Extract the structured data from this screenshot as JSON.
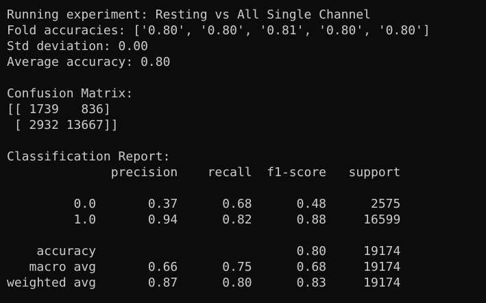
{
  "terminal": {
    "running_line": "Running experiment: Resting vs All Single Channel",
    "fold_line": "Fold accuracies: ['0.80', '0.80', '0.81', '0.80', '0.80']",
    "std_line": "Std deviation: 0.00",
    "avg_line": "Average accuracy: 0.80",
    "cm_title": "Confusion Matrix:",
    "cm_row1": "[[ 1739   836]",
    "cm_row2": " [ 2932 13667]]",
    "report_title": "Classification Report:",
    "report_header": "              precision    recall  f1-score   support",
    "report_row_0": "         0.0       0.37      0.68      0.48      2575",
    "report_row_1": "         1.0       0.94      0.82      0.88     16599",
    "report_accuracy": "    accuracy                           0.80     19174",
    "report_macro": "   macro avg       0.66      0.75      0.68     19174",
    "report_weighted": "weighted avg       0.87      0.80      0.83     19174"
  }
}
